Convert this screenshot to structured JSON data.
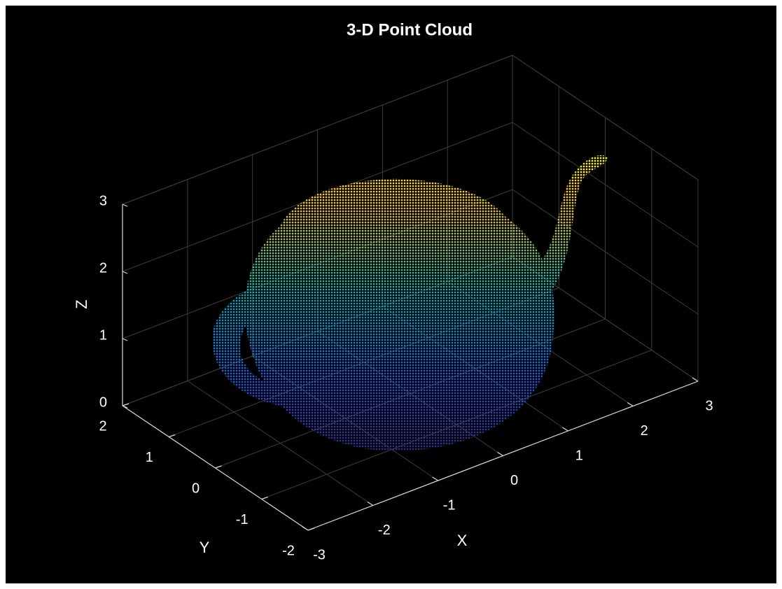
{
  "chart_data": {
    "type": "scatter3",
    "title": "3-D Point Cloud",
    "xlabel": "X",
    "ylabel": "Y",
    "zlabel": "Z",
    "xlim": [
      -3,
      3
    ],
    "ylim": [
      -2,
      2
    ],
    "zlim": [
      0,
      3
    ],
    "xticks": [
      -3,
      -2,
      -1,
      0,
      1,
      2,
      3
    ],
    "yticks": [
      -2,
      -1,
      0,
      1,
      2
    ],
    "zticks": [
      0,
      1,
      2,
      3
    ],
    "grid": true
  }
}
